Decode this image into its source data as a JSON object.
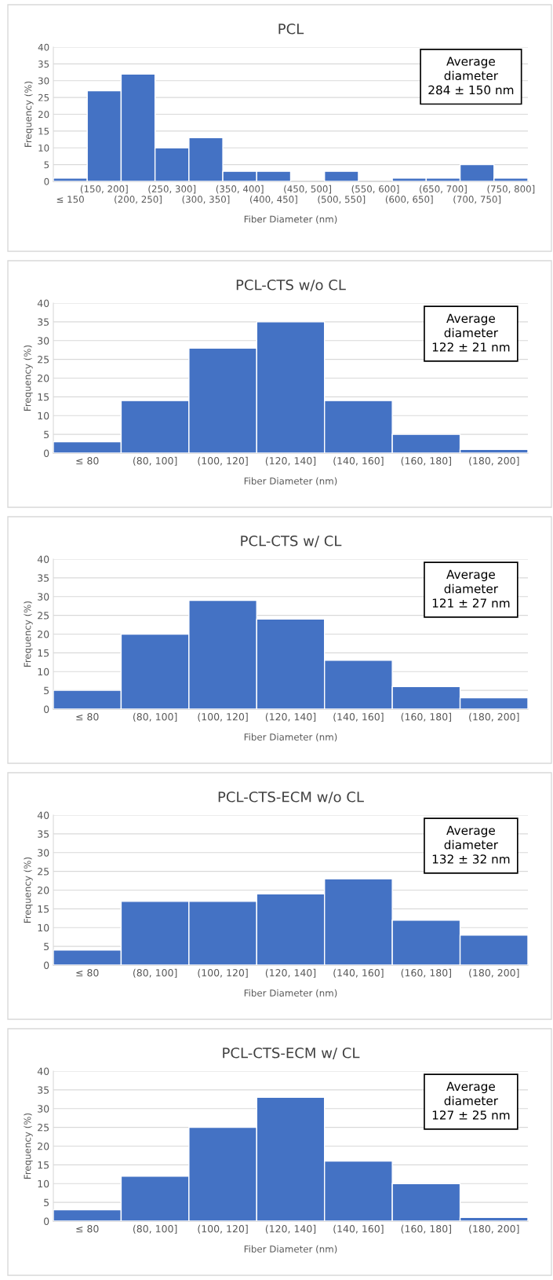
{
  "chart_data": [
    {
      "type": "bar",
      "title": "PCL",
      "xlabel": "Fiber Diameter (nm)",
      "ylabel": "Frequency (%)",
      "categories": [
        "≤ 150",
        "(150, 200]",
        "(200, 250]",
        "(250, 300]",
        "(300, 350]",
        "(350, 400]",
        "(400, 450]",
        "(450, 500]",
        "(500, 550]",
        "(550, 600]",
        "(600, 650]",
        "(650, 700]",
        "(700, 750]",
        "(750, 800]"
      ],
      "values": [
        1,
        27,
        32,
        10,
        13,
        3,
        3,
        0,
        3,
        0,
        1,
        1,
        5,
        1
      ],
      "color": "#4472c4",
      "ylim": [
        0,
        40
      ],
      "yticks": [
        0,
        5,
        10,
        15,
        20,
        25,
        30,
        35,
        40
      ],
      "grid": "y",
      "annotations": [
        "Average\ndiameter\n284 ± 150 nm"
      ]
    },
    {
      "type": "bar",
      "title": "PCL-CTS w/o CL",
      "xlabel": "Fiber Diameter (nm)",
      "ylabel": "Frequency (%)",
      "categories": [
        "≤ 80",
        "(80, 100]",
        "(100, 120]",
        "(120, 140]",
        "(140, 160]",
        "(160, 180]",
        "(180, 200]"
      ],
      "values": [
        3,
        14,
        28,
        35,
        14,
        5,
        1
      ],
      "color": "#4472c4",
      "ylim": [
        0,
        40
      ],
      "yticks": [
        0,
        5,
        10,
        15,
        20,
        25,
        30,
        35,
        40
      ],
      "grid": "y",
      "annotations": [
        "Average\ndiameter\n122 ± 21 nm"
      ]
    },
    {
      "type": "bar",
      "title": "PCL-CTS w/ CL",
      "xlabel": "Fiber Diameter (nm)",
      "ylabel": "Frequency (%)",
      "categories": [
        "≤ 80",
        "(80, 100]",
        "(100, 120]",
        "(120, 140]",
        "(140, 160]",
        "(160, 180]",
        "(180, 200]"
      ],
      "values": [
        5,
        20,
        29,
        24,
        13,
        6,
        3
      ],
      "color": "#4472c4",
      "ylim": [
        0,
        40
      ],
      "yticks": [
        0,
        5,
        10,
        15,
        20,
        25,
        30,
        35,
        40
      ],
      "grid": "y",
      "annotations": [
        "Average\ndiameter\n121 ± 27 nm"
      ]
    },
    {
      "type": "bar",
      "title": "PCL-CTS-ECM w/o CL",
      "xlabel": "Fiber Diameter (nm)",
      "ylabel": "Frequency (%)",
      "categories": [
        "≤ 80",
        "(80, 100]",
        "(100, 120]",
        "(120, 140]",
        "(140, 160]",
        "(160, 180]",
        "(180, 200]"
      ],
      "values": [
        4,
        17,
        17,
        19,
        23,
        12,
        8
      ],
      "color": "#4472c4",
      "ylim": [
        0,
        40
      ],
      "yticks": [
        0,
        5,
        10,
        15,
        20,
        25,
        30,
        35,
        40
      ],
      "grid": "y",
      "annotations": [
        "Average\ndiameter\n132 ± 32 nm"
      ]
    },
    {
      "type": "bar",
      "title": "PCL-CTS-ECM w/ CL",
      "xlabel": "Fiber Diameter (nm)",
      "ylabel": "Frequency (%)",
      "categories": [
        "≤ 80",
        "(80, 100]",
        "(100, 120]",
        "(120, 140]",
        "(140, 160]",
        "(160, 180]",
        "(180, 200]"
      ],
      "values": [
        3,
        12,
        25,
        33,
        16,
        10,
        1
      ],
      "color": "#4472c4",
      "ylim": [
        0,
        40
      ],
      "yticks": [
        0,
        5,
        10,
        15,
        20,
        25,
        30,
        35,
        40
      ],
      "grid": "y",
      "annotations": [
        "Average\ndiameter\n127 ± 25 nm"
      ]
    }
  ]
}
